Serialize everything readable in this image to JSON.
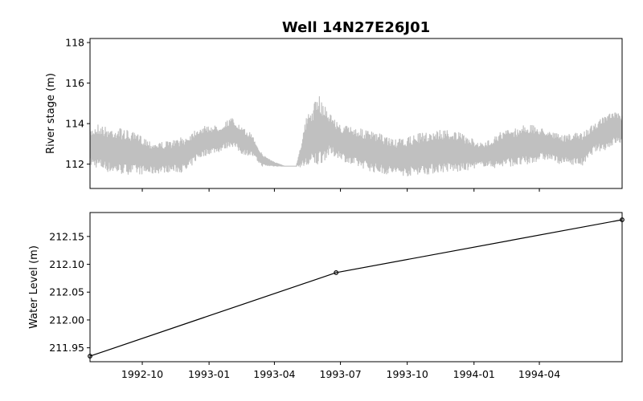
{
  "chart_data": [
    {
      "type": "line",
      "title": "Well 14N27E26J01",
      "xlabel": "",
      "ylabel": "River stage (m)",
      "ylim": [
        110.8,
        118.2
      ],
      "yticks": [
        112,
        114,
        116,
        118
      ],
      "xlim": [
        "1992-07-21",
        "1994-07-24"
      ],
      "grid": false,
      "series": [
        {
          "color": "#c0c0c0",
          "x": [
            "1992-07-21",
            "1992-08-01",
            "1992-08-15",
            "1992-09-01",
            "1992-09-15",
            "1992-10-01",
            "1992-10-15",
            "1992-11-01",
            "1992-11-15",
            "1992-12-01",
            "1992-12-15",
            "1993-01-01",
            "1993-01-15",
            "1993-02-01",
            "1993-02-15",
            "1993-03-01",
            "1993-03-15",
            "1993-04-01",
            "1993-04-15",
            "1993-05-01",
            "1993-05-15",
            "1993-06-01",
            "1993-06-15",
            "1993-07-01",
            "1993-07-15",
            "1993-08-01",
            "1993-08-15",
            "1993-09-01",
            "1993-09-15",
            "1993-10-01",
            "1993-10-15",
            "1993-11-01",
            "1993-11-15",
            "1993-12-01",
            "1993-12-15",
            "1994-01-01",
            "1994-01-15",
            "1994-02-01",
            "1994-02-15",
            "1994-03-01",
            "1994-03-15",
            "1994-04-01",
            "1994-04-15",
            "1994-05-01",
            "1994-05-15",
            "1994-06-01",
            "1994-06-15",
            "1994-07-01",
            "1994-07-15",
            "1994-07-24"
          ],
          "min": [
            111.9,
            111.8,
            111.6,
            111.5,
            111.5,
            111.5,
            111.5,
            111.6,
            111.6,
            111.6,
            112.2,
            112.5,
            112.6,
            112.9,
            112.5,
            112.4,
            111.9,
            111.9,
            111.9,
            111.9,
            111.8,
            111.9,
            112.4,
            112.3,
            111.9,
            111.8,
            111.6,
            111.5,
            111.5,
            111.4,
            111.5,
            111.5,
            111.6,
            111.6,
            111.6,
            111.8,
            111.9,
            111.8,
            111.9,
            111.9,
            111.9,
            112.2,
            112.2,
            112.0,
            112.0,
            111.9,
            112.6,
            112.7,
            113.0,
            113.0
          ],
          "max": [
            113.7,
            114.0,
            113.8,
            113.8,
            113.6,
            113.4,
            113.1,
            113.1,
            113.2,
            113.4,
            113.8,
            113.9,
            113.9,
            114.3,
            113.8,
            113.5,
            112.5,
            112.1,
            111.9,
            111.9,
            114.3,
            115.4,
            114.6,
            113.9,
            113.9,
            113.7,
            113.6,
            113.4,
            113.2,
            113.3,
            113.5,
            113.6,
            113.7,
            113.7,
            113.5,
            113.2,
            113.0,
            113.5,
            113.7,
            113.8,
            114.0,
            113.8,
            113.7,
            113.4,
            113.5,
            113.6,
            114.0,
            114.4,
            114.6,
            114.4
          ]
        }
      ]
    },
    {
      "type": "line",
      "xlabel": "",
      "ylabel": "Water Level (m)",
      "ylim": [
        211.925,
        212.193
      ],
      "yticks": [
        211.95,
        212.0,
        212.05,
        212.1,
        212.15
      ],
      "ytick_labels": [
        "211.95",
        "212.00",
        "212.05",
        "212.10",
        "212.15"
      ],
      "xlim": [
        "1992-07-21",
        "1994-07-24"
      ],
      "xticks": [
        "1992-10-01",
        "1993-01-01",
        "1993-04-01",
        "1993-07-01",
        "1993-10-01",
        "1994-01-01",
        "1994-04-01"
      ],
      "xtick_labels": [
        "1992-10",
        "1993-01",
        "1993-04",
        "1993-07",
        "1993-10",
        "1994-01",
        "1994-04"
      ],
      "grid": false,
      "series": [
        {
          "color": "#000000",
          "marker": "circle",
          "x": [
            "1992-07-21",
            "1993-06-25",
            "1994-07-24"
          ],
          "y": [
            211.935,
            212.085,
            212.18
          ]
        }
      ]
    }
  ]
}
